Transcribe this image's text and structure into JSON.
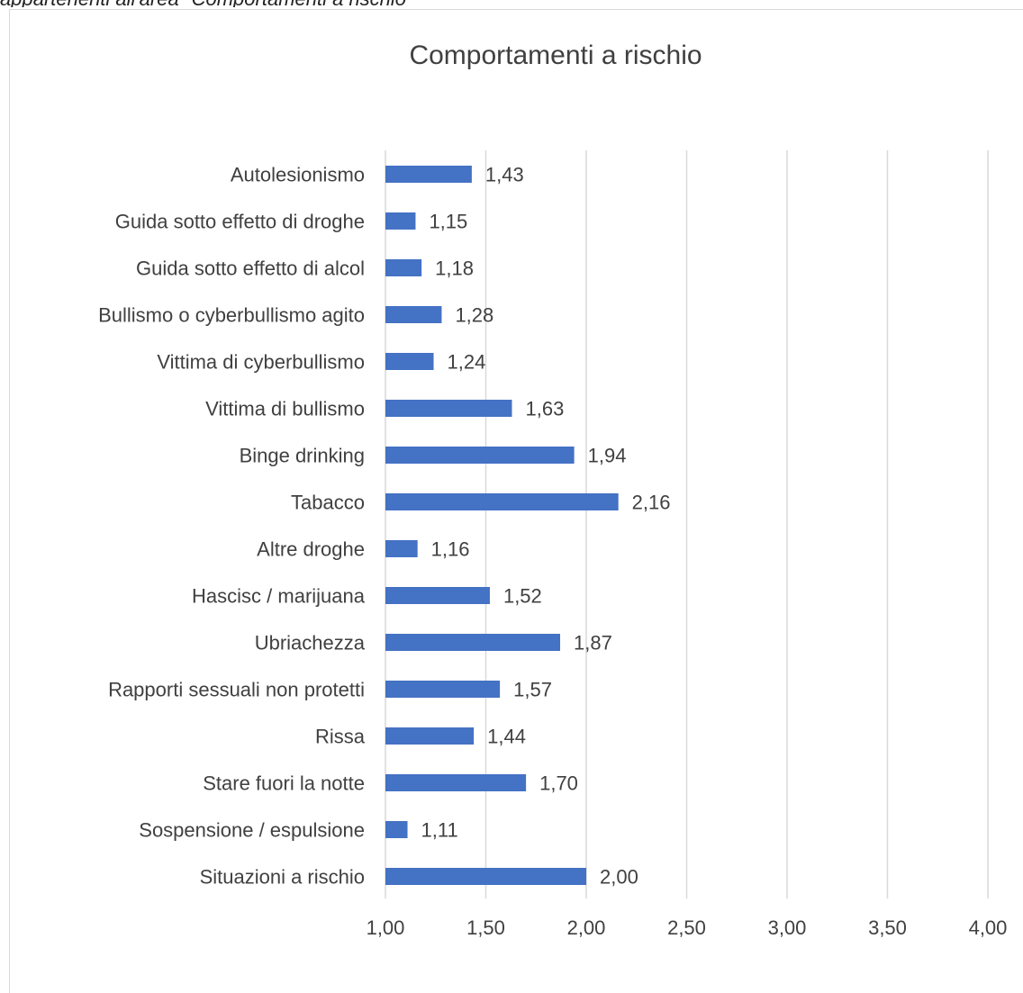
{
  "caption": "appartenenti all'area \"Comportamenti a rischio\"",
  "chart_data": {
    "type": "bar",
    "orientation": "horizontal",
    "title": "Comportamenti a rischio",
    "categories": [
      "Autolesionismo",
      "Guida sotto effetto di droghe",
      "Guida sotto effetto di alcol",
      "Bullismo o cyberbullismo agito",
      "Vittima di cyberbullismo",
      "Vittima di bullismo",
      "Binge drinking",
      "Tabacco",
      "Altre droghe",
      "Hascisc / marijuana",
      "Ubriachezza",
      "Rapporti sessuali non protetti",
      "Rissa",
      "Stare fuori la notte",
      "Sospensione / espulsione",
      "Situazioni a rischio"
    ],
    "values": [
      1.43,
      1.15,
      1.18,
      1.28,
      1.24,
      1.63,
      1.94,
      2.16,
      1.16,
      1.52,
      1.87,
      1.57,
      1.44,
      1.7,
      1.11,
      2.0
    ],
    "value_labels": [
      "1,43",
      "1,15",
      "1,18",
      "1,28",
      "1,24",
      "1,63",
      "1,94",
      "2,16",
      "1,16",
      "1,52",
      "1,87",
      "1,57",
      "1,44",
      "1,70",
      "1,11",
      "2,00"
    ],
    "xlim": [
      1.0,
      4.0
    ],
    "xticks": [
      1.0,
      1.5,
      2.0,
      2.5,
      3.0,
      3.5,
      4.0
    ],
    "xtick_labels": [
      "1,00",
      "1,50",
      "2,00",
      "2,50",
      "3,00",
      "3,50",
      "4,00"
    ],
    "grid": true,
    "bar_color": "#4472c4",
    "legend": "none"
  }
}
